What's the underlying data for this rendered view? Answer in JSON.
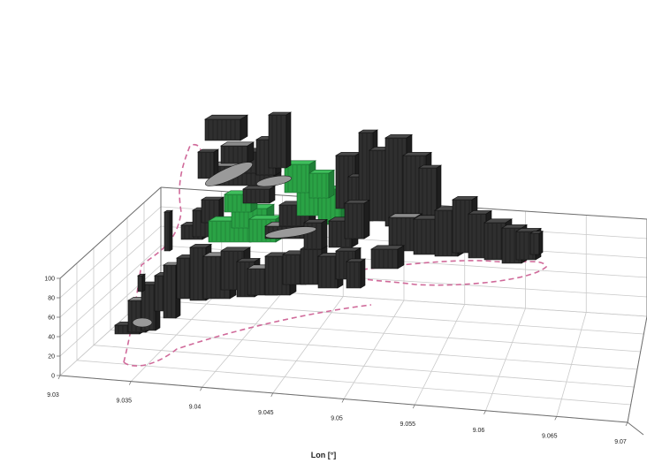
{
  "chart_data": {
    "type": "3d-bar",
    "xlabel": "Lon [°]",
    "x_ticks": [
      "9.03",
      "9.035",
      "9.04",
      "9.045",
      "9.05",
      "9.055",
      "9.06",
      "9.065",
      "9.07"
    ],
    "z_ticks": [
      "0",
      "20",
      "40",
      "60",
      "80",
      "100"
    ],
    "xlim": [
      9.03,
      9.07
    ],
    "zlim": [
      0,
      100
    ],
    "grid": true,
    "colors": {
      "building": "#2f2f2f",
      "building_edge": "#0d0d0d",
      "building_top": "#8c8c8c",
      "highlight": "#2aa245",
      "highlight_edge": "#14612a",
      "boundary": "#d06a9a",
      "grid": "#c9c9c9",
      "axis": "#6e6e6e"
    }
  }
}
